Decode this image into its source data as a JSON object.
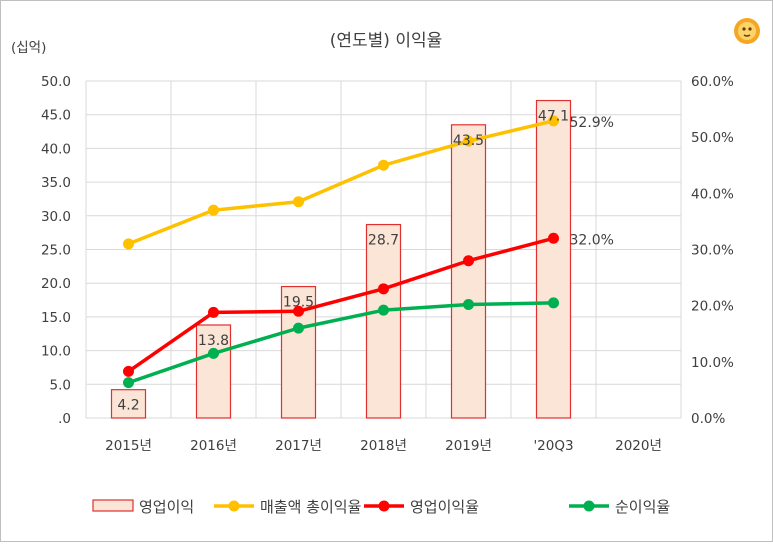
{
  "chart_data": {
    "type": "bar+line",
    "title": "(연도별) 이익율",
    "ylabel_left": "(십억)",
    "categories": [
      "2015년",
      "2016년",
      "2017년",
      "2018년",
      "2019년",
      "'20Q3",
      "2020년"
    ],
    "left_axis": {
      "ylim": [
        0,
        50
      ],
      "ticks": [
        "50.0",
        "45.0",
        "40.0",
        "35.0",
        "30.0",
        "25.0",
        "20.0",
        "15.0",
        "10.0",
        "5.0",
        ".0"
      ]
    },
    "right_axis": {
      "ylim": [
        0,
        60
      ],
      "ticks": [
        "60.0%",
        "50.0%",
        "40.0%",
        "30.0%",
        "20.0%",
        "10.0%",
        "0.0%"
      ]
    },
    "grid": true,
    "legend_position": "bottom",
    "series": [
      {
        "name": "영업이익",
        "type": "bar",
        "axis": "left",
        "color": "#fbe5d6",
        "edge_color": "#e03030",
        "values": [
          4.2,
          13.8,
          19.5,
          28.7,
          43.5,
          47.1,
          null
        ],
        "labels": [
          "4.2",
          "13.8",
          "19.5",
          "28.7",
          "43.5",
          "47.1",
          ""
        ]
      },
      {
        "name": "매출액 총이익율",
        "type": "line",
        "axis": "right",
        "color": "#ffc000",
        "values": [
          31.0,
          37.0,
          38.5,
          45.0,
          49.3,
          52.9,
          null
        ],
        "end_label": "52.9%"
      },
      {
        "name": "영업이익율",
        "type": "line",
        "axis": "right",
        "color": "#ff0000",
        "values": [
          8.3,
          18.8,
          19.0,
          23.0,
          28.0,
          32.0,
          null
        ],
        "end_label": "32.0%"
      },
      {
        "name": "순이익율",
        "type": "line",
        "axis": "right",
        "color": "#00b050",
        "values": [
          6.3,
          11.5,
          16.0,
          19.2,
          20.2,
          20.5,
          null
        ]
      }
    ]
  },
  "icon": "lion-logo-icon"
}
